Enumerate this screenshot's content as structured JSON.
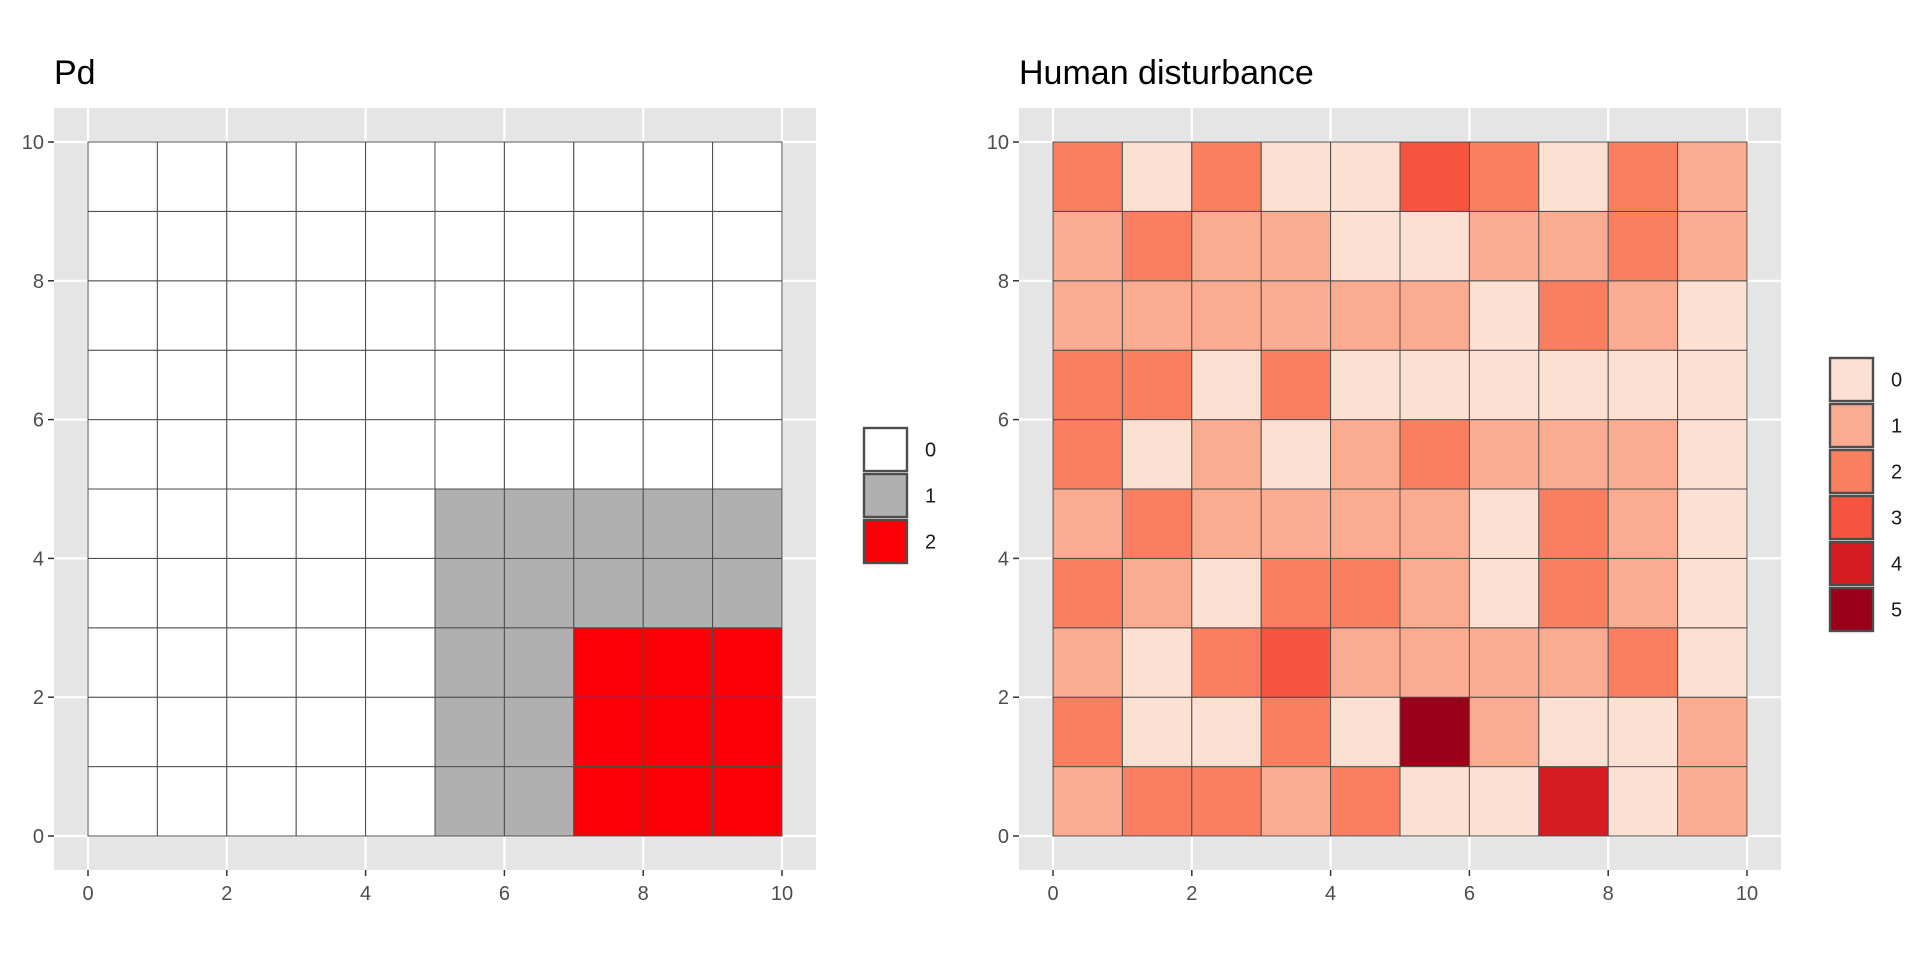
{
  "chart_data": [
    {
      "type": "heatmap",
      "title": "Pd",
      "xlabel": "",
      "ylabel": "",
      "xlim": [
        0,
        10
      ],
      "ylim": [
        0,
        10
      ],
      "x_ticks": [
        "0",
        "2",
        "4",
        "6",
        "8",
        "10"
      ],
      "y_ticks": [
        "0",
        "2",
        "4",
        "6",
        "8",
        "10"
      ],
      "grid": true,
      "legend_position": "right",
      "legend": [
        {
          "label": "0",
          "color": "#ffffff"
        },
        {
          "label": "1",
          "color": "#b0b0b0"
        },
        {
          "label": "2",
          "color": "#fc0008"
        }
      ],
      "cell_origin": "bottom-left (row 0 spans y 0-1, col 0 spans x 0-1)",
      "rows": [
        [
          0,
          0,
          0,
          0,
          0,
          1,
          1,
          2,
          2,
          2
        ],
        [
          0,
          0,
          0,
          0,
          0,
          1,
          1,
          2,
          2,
          2
        ],
        [
          0,
          0,
          0,
          0,
          0,
          1,
          1,
          2,
          2,
          2
        ],
        [
          0,
          0,
          0,
          0,
          0,
          1,
          1,
          1,
          1,
          1
        ],
        [
          0,
          0,
          0,
          0,
          0,
          1,
          1,
          1,
          1,
          1
        ],
        [
          0,
          0,
          0,
          0,
          0,
          0,
          0,
          0,
          0,
          0
        ],
        [
          0,
          0,
          0,
          0,
          0,
          0,
          0,
          0,
          0,
          0
        ],
        [
          0,
          0,
          0,
          0,
          0,
          0,
          0,
          0,
          0,
          0
        ],
        [
          0,
          0,
          0,
          0,
          0,
          0,
          0,
          0,
          0,
          0
        ],
        [
          0,
          0,
          0,
          0,
          0,
          0,
          0,
          0,
          0,
          0
        ]
      ]
    },
    {
      "type": "heatmap",
      "title": "Human disturbance",
      "xlabel": "",
      "ylabel": "",
      "xlim": [
        0,
        10
      ],
      "ylim": [
        0,
        10
      ],
      "x_ticks": [
        "0",
        "2",
        "4",
        "6",
        "8",
        "10"
      ],
      "y_ticks": [
        "0",
        "2",
        "4",
        "6",
        "8",
        "10"
      ],
      "grid": true,
      "legend_position": "right",
      "legend": [
        {
          "label": "0",
          "color": "#fce0d2"
        },
        {
          "label": "1",
          "color": "#fbab8f"
        },
        {
          "label": "2",
          "color": "#fa7f61"
        },
        {
          "label": "3",
          "color": "#f5553e"
        },
        {
          "label": "4",
          "color": "#d41c22"
        },
        {
          "label": "5",
          "color": "#9a0018"
        }
      ],
      "cell_origin": "bottom-left (row 0 spans y 0-1, col 0 spans x 0-1)",
      "rows": [
        [
          1,
          2,
          2,
          1,
          2,
          0,
          0,
          4,
          0,
          1
        ],
        [
          2,
          0,
          0,
          2,
          0,
          5,
          1,
          0,
          0,
          1
        ],
        [
          1,
          0,
          2,
          3,
          1,
          1,
          1,
          1,
          2,
          0
        ],
        [
          2,
          1,
          0,
          2,
          2,
          1,
          0,
          2,
          1,
          0
        ],
        [
          1,
          2,
          1,
          1,
          1,
          1,
          0,
          2,
          1,
          0
        ],
        [
          2,
          0,
          1,
          0,
          1,
          2,
          1,
          1,
          1,
          0
        ],
        [
          2,
          2,
          0,
          2,
          0,
          0,
          0,
          0,
          0,
          0
        ],
        [
          1,
          1,
          1,
          1,
          1,
          1,
          0,
          2,
          1,
          0
        ],
        [
          1,
          2,
          1,
          1,
          0,
          0,
          1,
          1,
          2,
          1
        ],
        [
          2,
          0,
          2,
          0,
          0,
          3,
          2,
          0,
          2,
          1
        ]
      ]
    }
  ]
}
